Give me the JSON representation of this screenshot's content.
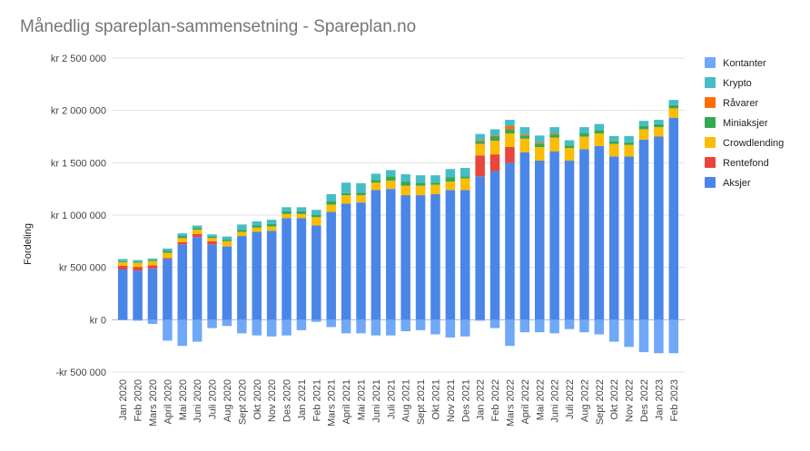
{
  "chart_data": {
    "type": "bar",
    "stacked": true,
    "title": "Månedlig spareplan-sammensetning - Spareplan.no",
    "xlabel": "",
    "ylabel": "Fordeling",
    "ylim": [
      -500000,
      2500000
    ],
    "yticks": [
      {
        "value": 2500000,
        "label": "kr 2 500 000"
      },
      {
        "value": 2000000,
        "label": "kr 2 000 000"
      },
      {
        "value": 1500000,
        "label": "kr 1 500 000"
      },
      {
        "value": 1000000,
        "label": "kr 1 000 000"
      },
      {
        "value": 500000,
        "label": "kr  500 000"
      },
      {
        "value": 0,
        "label": "kr    0"
      },
      {
        "value": -500000,
        "label": "-kr  500 000"
      }
    ],
    "grid": true,
    "legend_position": "right",
    "categories": [
      "Jan 2020",
      "Feb 2020",
      "Mars 2020",
      "April 2020",
      "Mai 2020",
      "Juni 2020",
      "Juli 2020",
      "Aug 2020",
      "Sept 2020",
      "Okt 2020",
      "Nov 2020",
      "Des 2020",
      "Jan 2021",
      "Feb 2021",
      "Mars 2021",
      "April 2021",
      "Mai 2021",
      "Juni 2021",
      "Juli 2021",
      "Aug 2021",
      "Sept 2021",
      "Okt 2021",
      "Nov 2021",
      "Des 2021",
      "Jan 2022",
      "Feb 2022",
      "Mars 2022",
      "April 2022",
      "Mai 2022",
      "Juni 2022",
      "Juli 2022",
      "Aug 2022",
      "Sept 2022",
      "Okt 2022",
      "Nov 2022",
      "Des 2022",
      "Jan 2023",
      "Feb 2023"
    ],
    "series": [
      {
        "name": "Aksjer",
        "color": "#4a86e8",
        "values": [
          480000,
          470000,
          490000,
          580000,
          720000,
          790000,
          720000,
          700000,
          800000,
          840000,
          850000,
          970000,
          970000,
          900000,
          1030000,
          1110000,
          1120000,
          1240000,
          1250000,
          1190000,
          1190000,
          1200000,
          1240000,
          1240000,
          1370000,
          1420000,
          1500000,
          1600000,
          1520000,
          1610000,
          1520000,
          1630000,
          1660000,
          1560000,
          1560000,
          1720000,
          1750000,
          1930000
        ]
      },
      {
        "name": "Rentefond",
        "color": "#e8453c",
        "values": [
          35000,
          35000,
          30000,
          10000,
          20000,
          30000,
          30000,
          0,
          0,
          0,
          0,
          0,
          0,
          0,
          0,
          0,
          0,
          0,
          0,
          0,
          0,
          0,
          0,
          0,
          200000,
          160000,
          150000,
          0,
          0,
          0,
          0,
          0,
          0,
          0,
          0,
          0,
          0,
          0
        ]
      },
      {
        "name": "Crowdlending",
        "color": "#fbbc04",
        "values": [
          35000,
          40000,
          40000,
          50000,
          40000,
          40000,
          30000,
          50000,
          40000,
          40000,
          40000,
          40000,
          40000,
          80000,
          70000,
          80000,
          70000,
          70000,
          80000,
          90000,
          90000,
          90000,
          80000,
          110000,
          110000,
          130000,
          130000,
          130000,
          130000,
          130000,
          120000,
          120000,
          120000,
          120000,
          110000,
          100000,
          90000,
          90000
        ]
      },
      {
        "name": "Miniaksjer",
        "color": "#34a853",
        "values": [
          10000,
          10000,
          10000,
          20000,
          20000,
          15000,
          15000,
          15000,
          20000,
          20000,
          25000,
          25000,
          25000,
          20000,
          30000,
          20000,
          25000,
          25000,
          40000,
          40000,
          30000,
          20000,
          40000,
          20000,
          25000,
          40000,
          40000,
          30000,
          30000,
          30000,
          25000,
          30000,
          30000,
          25000,
          25000,
          30000,
          30000,
          30000
        ]
      },
      {
        "name": "Råvarer",
        "color": "#ff6d01",
        "values": [
          0,
          0,
          0,
          0,
          0,
          0,
          0,
          0,
          0,
          0,
          0,
          0,
          0,
          0,
          0,
          0,
          0,
          0,
          0,
          0,
          0,
          0,
          0,
          0,
          10000,
          10000,
          30000,
          10000,
          10000,
          10000,
          0,
          0,
          0,
          0,
          0,
          0,
          0,
          0
        ]
      },
      {
        "name": "Krypto",
        "color": "#46bdc6",
        "values": [
          20000,
          15000,
          15000,
          20000,
          25000,
          25000,
          20000,
          30000,
          50000,
          40000,
          40000,
          40000,
          40000,
          50000,
          70000,
          100000,
          90000,
          60000,
          60000,
          70000,
          70000,
          70000,
          80000,
          80000,
          60000,
          60000,
          60000,
          70000,
          70000,
          60000,
          50000,
          60000,
          60000,
          50000,
          60000,
          50000,
          40000,
          50000
        ]
      },
      {
        "name": "Kontanter",
        "color": "#6fa8f7",
        "values": [
          -5000,
          -10000,
          -40000,
          -200000,
          -250000,
          -210000,
          -80000,
          -60000,
          -130000,
          -150000,
          -160000,
          -150000,
          -100000,
          -20000,
          -70000,
          -130000,
          -130000,
          -150000,
          -150000,
          -110000,
          -100000,
          -140000,
          -170000,
          -160000,
          -10000,
          -80000,
          -250000,
          -120000,
          -120000,
          -130000,
          -90000,
          -120000,
          -140000,
          -210000,
          -260000,
          -310000,
          -320000,
          -320000
        ]
      }
    ]
  }
}
